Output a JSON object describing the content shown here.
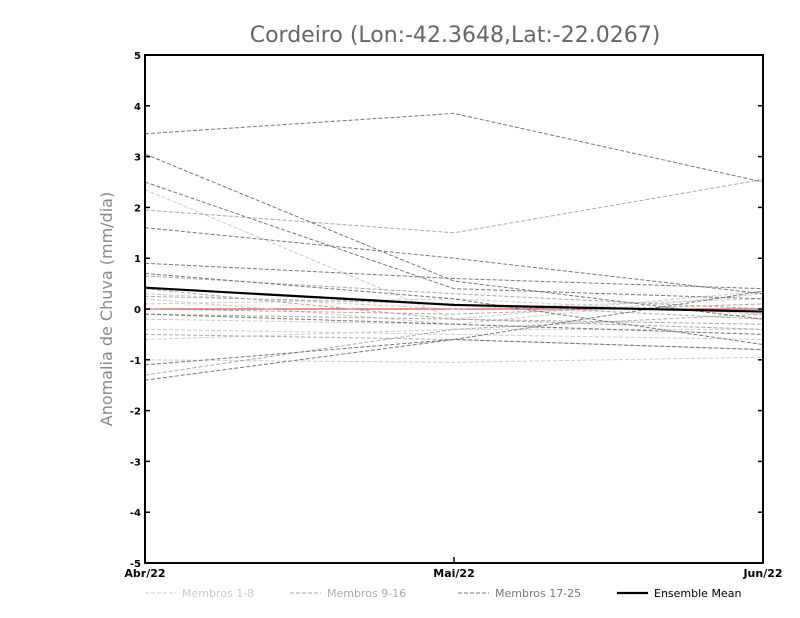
{
  "chart_data": {
    "type": "line",
    "title": "Cordeiro (Lon:-42.3648,Lat:-22.0267)",
    "ylabel": "Anomalia de Chuva (mm/dia)",
    "xlabel": "",
    "categories": [
      "Abr/22",
      "Mai/22",
      "Jun/22"
    ],
    "ylim": [
      -5,
      5
    ],
    "yticks": [
      -5,
      -4,
      -3,
      -2,
      -1,
      0,
      1,
      2,
      3,
      4,
      5
    ],
    "grid": false,
    "legend_position": "bottom",
    "zero_line": {
      "value": 0,
      "color": "#e05050"
    },
    "groups": [
      {
        "name": "Membros 1-8",
        "color": "#cccccc"
      },
      {
        "name": "Membros 9-16",
        "color": "#aaaaaa"
      },
      {
        "name": "Membros 17-25",
        "color": "#777777"
      },
      {
        "name": "Ensemble Mean",
        "color": "#000000"
      }
    ],
    "series": [
      {
        "group": 0,
        "values": [
          2.35,
          -0.2,
          0.35
        ]
      },
      {
        "group": 0,
        "values": [
          0.2,
          -0.3,
          0.3
        ]
      },
      {
        "group": 0,
        "values": [
          -0.4,
          -0.5,
          -0.6
        ]
      },
      {
        "group": 0,
        "values": [
          -1.0,
          -1.05,
          -0.95
        ]
      },
      {
        "group": 0,
        "values": [
          0.1,
          0.2,
          -0.1
        ]
      },
      {
        "group": 0,
        "values": [
          -0.6,
          -0.4,
          -0.4
        ]
      },
      {
        "group": 0,
        "values": [
          0.3,
          0.0,
          0.2
        ]
      },
      {
        "group": 0,
        "values": [
          -0.2,
          -0.3,
          -0.5
        ]
      },
      {
        "group": 1,
        "values": [
          1.95,
          1.5,
          2.55
        ]
      },
      {
        "group": 1,
        "values": [
          0.65,
          0.3,
          0.0
        ]
      },
      {
        "group": 1,
        "values": [
          -0.1,
          -0.2,
          -0.3
        ]
      },
      {
        "group": 1,
        "values": [
          0.4,
          -0.2,
          -0.4
        ]
      },
      {
        "group": 1,
        "values": [
          -0.5,
          -0.6,
          -0.8
        ]
      },
      {
        "group": 1,
        "values": [
          0.25,
          0.1,
          -0.2
        ]
      },
      {
        "group": 1,
        "values": [
          -1.3,
          -0.4,
          -0.1
        ]
      },
      {
        "group": 1,
        "values": [
          0.0,
          -0.1,
          0.1
        ]
      },
      {
        "group": 2,
        "values": [
          3.45,
          3.85,
          2.5
        ]
      },
      {
        "group": 2,
        "values": [
          3.05,
          0.55,
          -0.2
        ]
      },
      {
        "group": 2,
        "values": [
          2.5,
          0.4,
          0.2
        ]
      },
      {
        "group": 2,
        "values": [
          1.6,
          1.0,
          0.3
        ]
      },
      {
        "group": 2,
        "values": [
          0.9,
          0.6,
          0.4
        ]
      },
      {
        "group": 2,
        "values": [
          0.7,
          0.2,
          -0.7
        ]
      },
      {
        "group": 2,
        "values": [
          -1.4,
          -0.6,
          0.35
        ]
      },
      {
        "group": 2,
        "values": [
          -1.1,
          -0.6,
          -0.8
        ]
      },
      {
        "group": 2,
        "values": [
          -0.1,
          -0.3,
          -0.5
        ]
      }
    ],
    "ensemble_mean": {
      "name": "Ensemble Mean",
      "values": [
        0.42,
        0.08,
        -0.05
      ]
    }
  }
}
